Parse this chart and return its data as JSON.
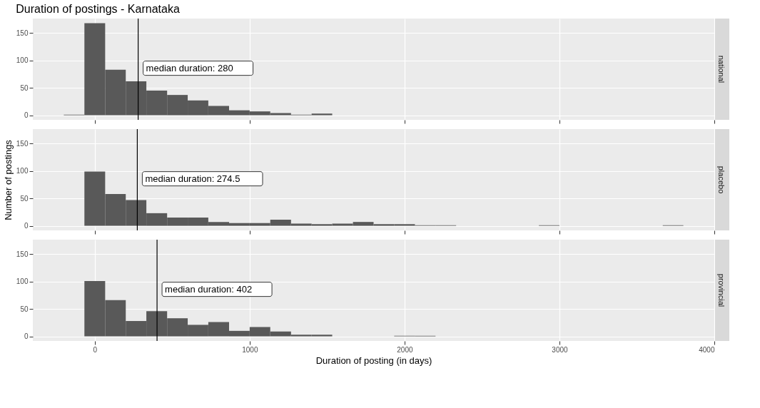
{
  "chart_data": [
    {
      "type": "histogram",
      "title": "Duration of postings - Karnataka",
      "subtitle": "national",
      "color": "#595959",
      "bins": [
        -200,
        -67,
        67,
        200,
        333,
        467,
        600,
        733,
        867,
        1000,
        1133,
        1267,
        1400,
        1533,
        1667,
        1800,
        1933,
        2067,
        2200,
        2333,
        2467,
        2600,
        2733,
        2867,
        3000,
        3133,
        3267,
        3400,
        3533,
        3667,
        3800
      ],
      "values": [
        1,
        168,
        83,
        62,
        45,
        37,
        27,
        17,
        9,
        7,
        4,
        1,
        3,
        0,
        0,
        0,
        0,
        0,
        0,
        0,
        0,
        0,
        0,
        0,
        0,
        0,
        0,
        0,
        0,
        0
      ],
      "xlim": [
        -400,
        4000
      ],
      "xticks": [
        0,
        1000,
        2000,
        3000,
        4000
      ],
      "ylim": [
        -8.4,
        176.4
      ],
      "yticks": [
        0,
        50,
        100,
        150
      ],
      "grid": true,
      "tick_labels": "y",
      "ref_lines": [
        {
          "axis": "x",
          "value": 280,
          "label": "median duration: 280",
          "color": "#000000"
        }
      ]
    },
    {
      "type": "histogram",
      "subtitle": "placebo",
      "ylabel": "Number of postings",
      "color": "#595959",
      "bins": [
        -200,
        -67,
        67,
        200,
        333,
        467,
        600,
        733,
        867,
        1000,
        1133,
        1267,
        1400,
        1533,
        1667,
        1800,
        1933,
        2067,
        2200,
        2333,
        2467,
        2600,
        2733,
        2867,
        3000,
        3133,
        3267,
        3400,
        3533,
        3667,
        3800
      ],
      "values": [
        0,
        99,
        58,
        47,
        23,
        15,
        15,
        7,
        5,
        5,
        11,
        4,
        3,
        4,
        7,
        3,
        3,
        1,
        1,
        0,
        0,
        0,
        0,
        1,
        0,
        0,
        0,
        0,
        0,
        1
      ],
      "xlim": [
        -400,
        4000
      ],
      "xticks": [
        0,
        1000,
        2000,
        3000,
        4000
      ],
      "ylim": [
        -8.4,
        176.4
      ],
      "yticks": [
        0,
        50,
        100,
        150
      ],
      "grid": true,
      "tick_labels": "y",
      "ref_lines": [
        {
          "axis": "x",
          "value": 274.5,
          "label": "median duration: 274.5",
          "color": "#000000"
        }
      ]
    },
    {
      "type": "histogram",
      "subtitle": "provincial",
      "xlabel": "Duration of posting (in days)",
      "color": "#595959",
      "bins": [
        -200,
        -67,
        67,
        200,
        333,
        467,
        600,
        733,
        867,
        1000,
        1133,
        1267,
        1400,
        1533,
        1667,
        1800,
        1933,
        2067,
        2200,
        2333,
        2467,
        2600,
        2733,
        2867,
        3000,
        3133,
        3267,
        3400,
        3533,
        3667,
        3800
      ],
      "values": [
        0,
        101,
        66,
        28,
        46,
        33,
        21,
        26,
        10,
        17,
        9,
        3,
        3,
        0,
        0,
        0,
        1,
        1,
        0,
        0,
        0,
        0,
        0,
        0,
        0,
        0,
        0,
        0,
        0,
        0
      ],
      "xlim": [
        -400,
        4000
      ],
      "xticks": [
        0,
        1000,
        2000,
        3000,
        4000
      ],
      "ylim": [
        -8.4,
        176.4
      ],
      "yticks": [
        0,
        50,
        100,
        150
      ],
      "grid": true,
      "ref_lines": [
        {
          "axis": "x",
          "value": 402,
          "label": "median duration: 402",
          "color": "#000000"
        }
      ]
    }
  ]
}
